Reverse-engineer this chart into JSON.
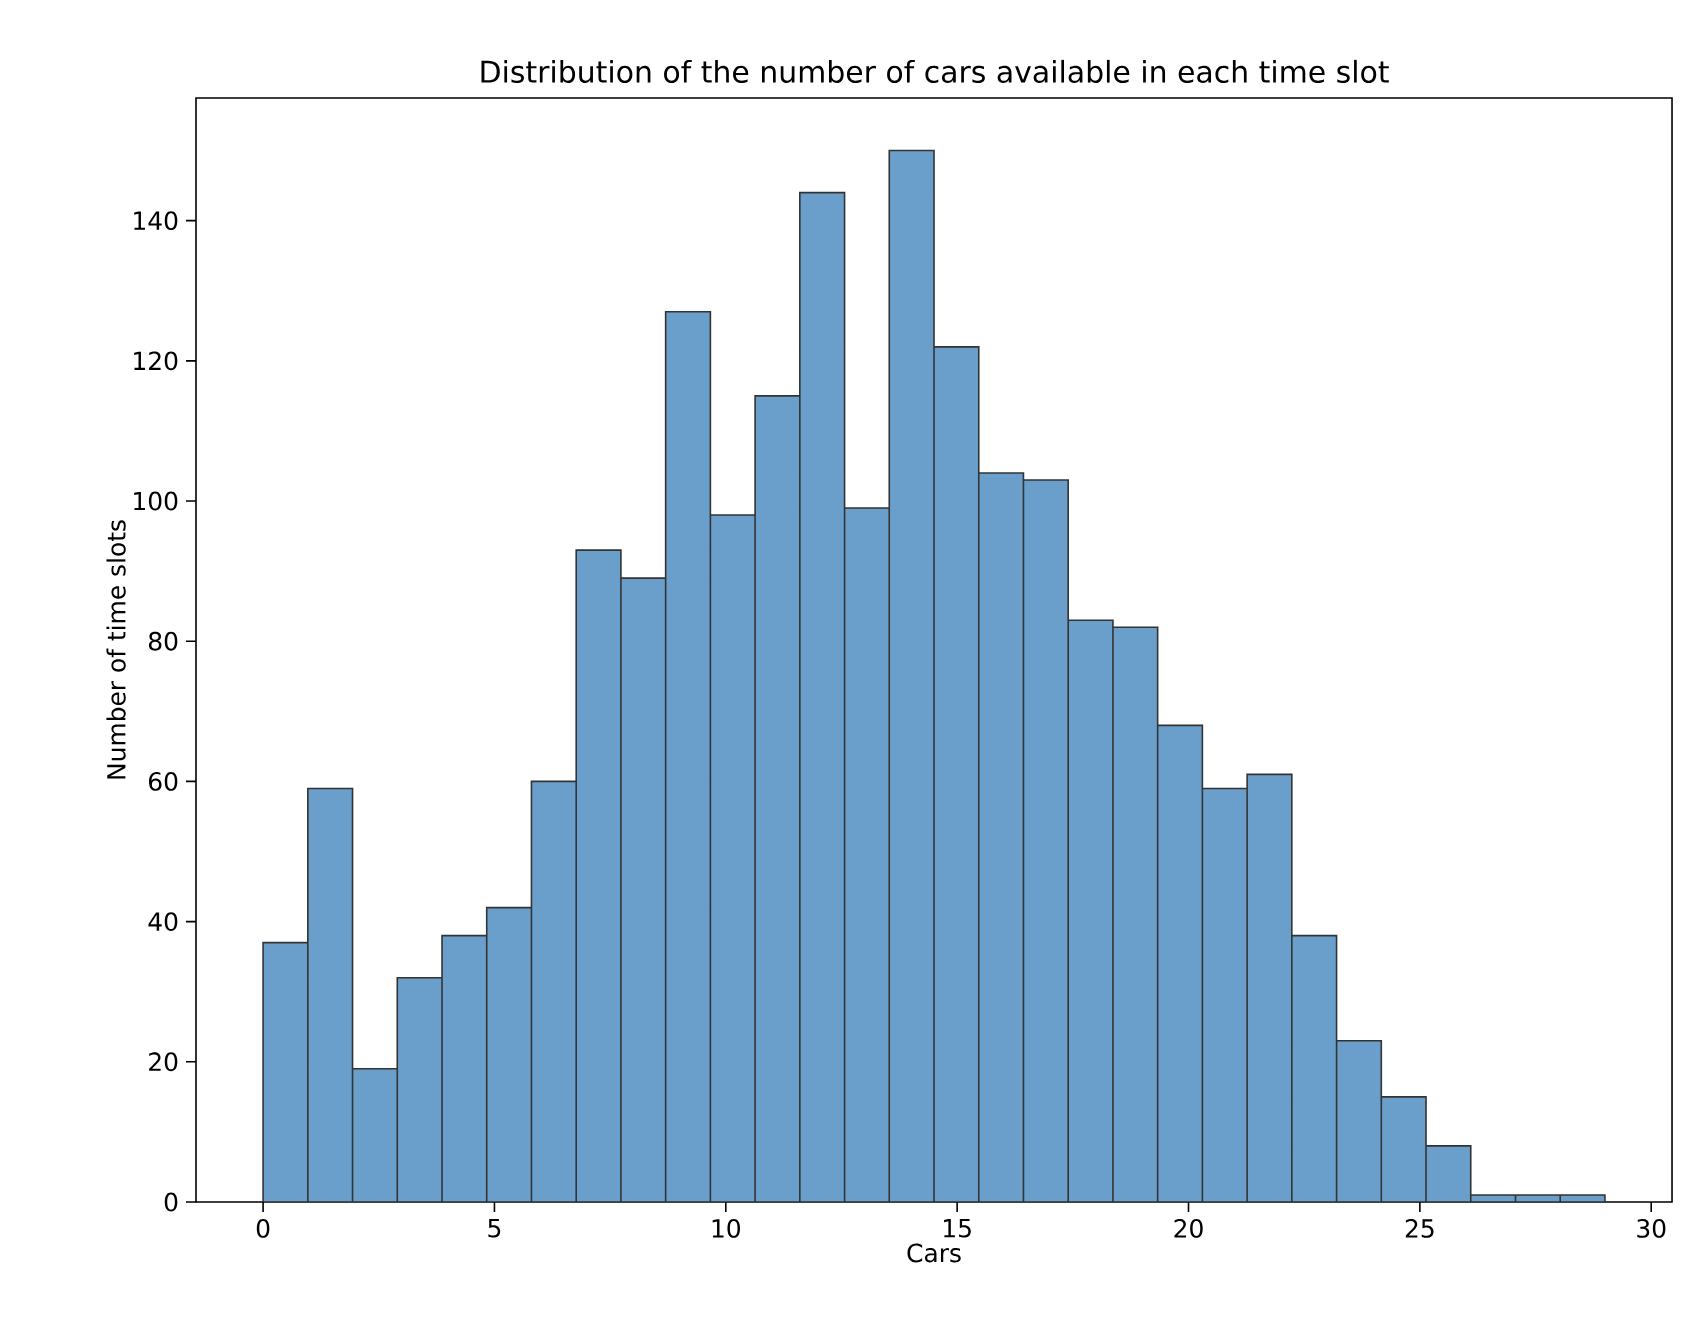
{
  "chart_data": {
    "type": "histogram",
    "title": "Distribution of the number of cars available in each time slot",
    "xlabel": "Cars",
    "ylabel": "Number of time slots",
    "bins": [
      0,
      0.967,
      1.933,
      2.9,
      3.867,
      4.833,
      5.8,
      6.767,
      7.733,
      8.7,
      9.667,
      10.633,
      11.6,
      12.567,
      13.533,
      14.5,
      15.467,
      16.433,
      17.4,
      18.367,
      19.333,
      20.3,
      21.267,
      22.233,
      23.2,
      24.167,
      25.133,
      26.1,
      27.067,
      28.033,
      29
    ],
    "values": [
      37,
      59,
      19,
      32,
      38,
      42,
      60,
      93,
      89,
      127,
      98,
      115,
      144,
      99,
      150,
      122,
      104,
      103,
      83,
      82,
      68,
      59,
      61,
      38,
      23,
      15,
      8,
      1,
      1,
      1
    ],
    "color": "#6a9fcb",
    "xlim": [
      -1.45,
      30.45
    ],
    "ylim": [
      0,
      157.5
    ],
    "xticks": [
      0,
      5,
      10,
      15,
      20,
      25,
      30
    ],
    "yticks": [
      0,
      20,
      40,
      60,
      80,
      100,
      120,
      140
    ],
    "grid": false
  }
}
